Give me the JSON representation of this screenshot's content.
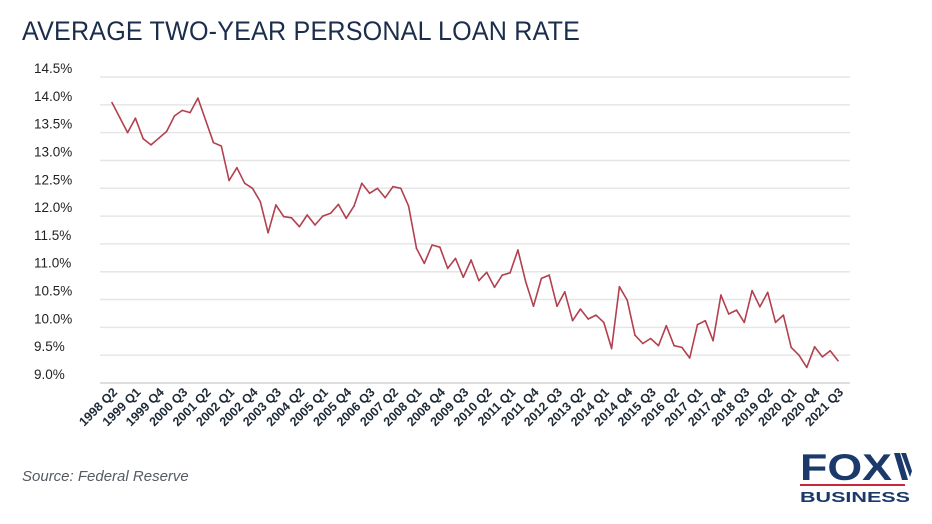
{
  "chart_data": {
    "type": "line",
    "title": "AVERAGE TWO-YEAR PERSONAL LOAN RATE",
    "xlabel": "",
    "ylabel": "",
    "ylim": [
      9.0,
      14.5
    ],
    "grid": true,
    "y_ticks": [
      "14.5%",
      "14.0%",
      "13.5%",
      "13.0%",
      "12.5%",
      "12.0%",
      "11.5%",
      "11.0%",
      "10.5%",
      "10.0%",
      "9.5%",
      "9.0%"
    ],
    "y_tick_values": [
      14.5,
      14.0,
      13.5,
      13.0,
      12.5,
      12.0,
      11.5,
      11.0,
      10.5,
      10.0,
      9.5,
      9.0
    ],
    "x_range": [
      "1998 Q2",
      "2021 Q3"
    ],
    "x_tick_labels": [
      "1998 Q2",
      "1999 Q1",
      "1999 Q4",
      "2000 Q3",
      "2001 Q2",
      "2002 Q1",
      "2002 Q4",
      "2003 Q3",
      "2004 Q2",
      "2005 Q1",
      "2005 Q4",
      "2006 Q3",
      "2007 Q2",
      "2008 Q1",
      "2008 Q4",
      "2009 Q3",
      "2010 Q2",
      "2011 Q1",
      "2011 Q4",
      "2012 Q3",
      "2013 Q2",
      "2014 Q1",
      "2014 Q4",
      "2015 Q3",
      "2016 Q2",
      "2017 Q1",
      "2017 Q4",
      "2018 Q3",
      "2019 Q2",
      "2020 Q1",
      "2020 Q4",
      "2021 Q3"
    ],
    "x_tick_every_quarters": 3,
    "series": [
      {
        "color": "#b2404f",
        "values": [
          14.04,
          13.77,
          13.5,
          13.76,
          13.39,
          13.28,
          13.4,
          13.52,
          13.8,
          13.9,
          13.86,
          14.12,
          13.72,
          13.32,
          13.26,
          12.64,
          12.87,
          12.59,
          12.5,
          12.26,
          11.7,
          12.2,
          11.99,
          11.97,
          11.81,
          12.02,
          11.84,
          12.0,
          12.05,
          12.21,
          11.96,
          12.18,
          12.59,
          12.41,
          12.5,
          12.33,
          12.53,
          12.5,
          12.18,
          11.42,
          11.15,
          11.48,
          11.44,
          11.06,
          11.24,
          10.9,
          11.21,
          10.84,
          10.99,
          10.72,
          10.94,
          10.98,
          11.39,
          10.82,
          10.38,
          10.88,
          10.94,
          10.38,
          10.64,
          10.12,
          10.33,
          10.15,
          10.22,
          10.09,
          9.62,
          10.73,
          10.49,
          9.86,
          9.71,
          9.8,
          9.67,
          10.03,
          9.67,
          9.64,
          9.45,
          10.05,
          10.12,
          9.76,
          10.58,
          10.24,
          10.31,
          10.09,
          10.66,
          10.37,
          10.63,
          10.09,
          10.22,
          9.64,
          9.5,
          9.28,
          9.65,
          9.47,
          9.58,
          9.4
        ]
      }
    ]
  },
  "source": "Source: Federal Reserve",
  "logo": {
    "top": "FOX",
    "bottom": "BUSINESS",
    "color": "#1b3a6b",
    "accent": "#c8283c"
  },
  "colors": {
    "title": "#1b2d4b",
    "grid": "#e6e6e6",
    "line": "#b2404f"
  }
}
